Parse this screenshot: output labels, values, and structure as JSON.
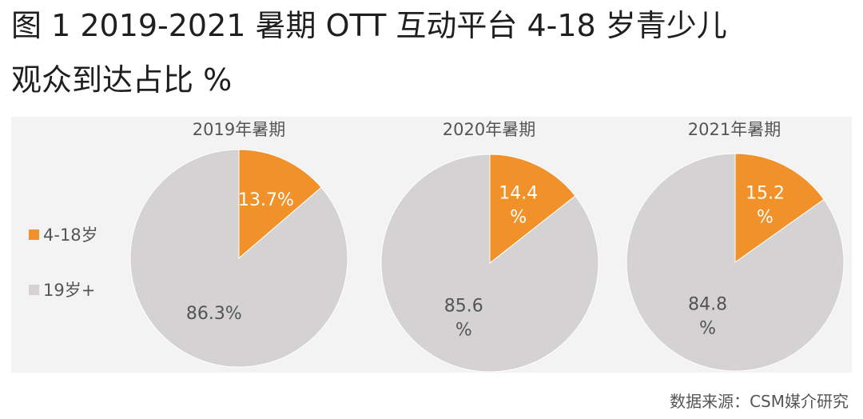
{
  "title": {
    "line1": "图 1 2019-2021 暑期 OTT 互动平台 4-18 岁青少儿",
    "line2": "观众到达占比 %"
  },
  "source": "数据来源：CSM媒介研究",
  "colors": {
    "youth": "#f0912a",
    "adult": "#d4d2d2",
    "panel_bg": "#f3f3f3",
    "label": "#555555",
    "pie_edge": "#ffffff"
  },
  "legend": [
    {
      "name": "4-18岁",
      "color": "#f0912a"
    },
    {
      "name": "19岁+",
      "color": "#d4d2d2"
    }
  ],
  "chart_data": [
    {
      "type": "pie",
      "title": "2019年暑期",
      "slices": [
        {
          "label": "4-18岁",
          "value": 13.7,
          "data_label": [
            "13.7%"
          ]
        },
        {
          "label": "19岁+",
          "value": 86.3,
          "data_label": [
            "86.3%"
          ]
        }
      ]
    },
    {
      "type": "pie",
      "title": "2020年暑期",
      "slices": [
        {
          "label": "4-18岁",
          "value": 14.4,
          "data_label": [
            "14.4",
            "%"
          ]
        },
        {
          "label": "19岁+",
          "value": 85.6,
          "data_label": [
            "85.6",
            "%"
          ]
        }
      ]
    },
    {
      "type": "pie",
      "title": "2021年暑期",
      "slices": [
        {
          "label": "4-18岁",
          "value": 15.2,
          "data_label": [
            "15.2",
            "%"
          ]
        },
        {
          "label": "19岁+",
          "value": 84.8,
          "data_label": [
            "84.8",
            "%"
          ]
        }
      ]
    }
  ]
}
